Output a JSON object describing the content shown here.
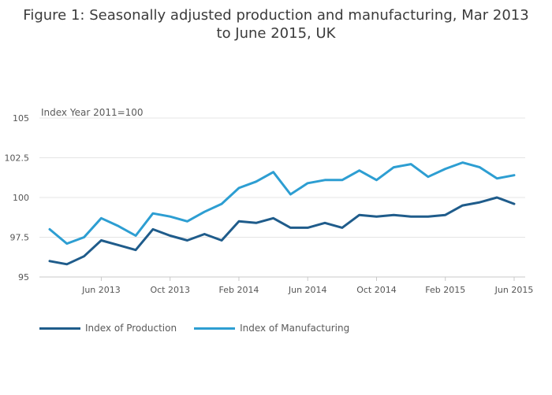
{
  "title": "Figure 1: Seasonally adjusted production and manufacturing, Mar 2013 to June 2015, UK",
  "chart_data": {
    "type": "line",
    "title": "Figure 1: Seasonally adjusted production and manufacturing, Mar 2013 to June 2015, UK",
    "ylabel": "Index Year 2011=100",
    "xlabel": "",
    "ylim": [
      95,
      105
    ],
    "y_ticks": [
      "95",
      "97.5",
      "100",
      "102.5",
      "105"
    ],
    "x_ticks": [
      {
        "index": 3,
        "label": "Jun 2013"
      },
      {
        "index": 7,
        "label": "Oct 2013"
      },
      {
        "index": 11,
        "label": "Feb 2014"
      },
      {
        "index": 15,
        "label": "Jun 2014"
      },
      {
        "index": 19,
        "label": "Oct 2014"
      },
      {
        "index": 23,
        "label": "Feb 2015"
      },
      {
        "index": 27,
        "label": "Jun 2015"
      }
    ],
    "x": [
      "Mar 2013",
      "Apr 2013",
      "May 2013",
      "Jun 2013",
      "Jul 2013",
      "Aug 2013",
      "Sep 2013",
      "Oct 2013",
      "Nov 2013",
      "Dec 2013",
      "Jan 2014",
      "Feb 2014",
      "Mar 2014",
      "Apr 2014",
      "May 2014",
      "Jun 2014",
      "Jul 2014",
      "Aug 2014",
      "Sep 2014",
      "Oct 2014",
      "Nov 2014",
      "Dec 2014",
      "Jan 2015",
      "Feb 2015",
      "Mar 2015",
      "Apr 2015",
      "May 2015",
      "Jun 2015"
    ],
    "series": [
      {
        "name": "Index of Production",
        "color": "#1f5c8b",
        "values": [
          96.0,
          95.8,
          96.3,
          97.3,
          97.0,
          96.7,
          98.0,
          97.6,
          97.3,
          97.7,
          97.3,
          98.5,
          98.4,
          98.7,
          98.1,
          98.1,
          98.4,
          98.1,
          98.9,
          98.8,
          98.9,
          98.8,
          98.8,
          98.9,
          99.5,
          99.7,
          100.0,
          99.6
        ]
      },
      {
        "name": "Index of Manufacturing",
        "color": "#2d9ed2",
        "values": [
          98.0,
          97.1,
          97.5,
          98.7,
          98.2,
          97.6,
          99.0,
          98.8,
          98.5,
          99.1,
          99.6,
          100.6,
          101.0,
          101.6,
          100.2,
          100.9,
          101.1,
          101.1,
          101.7,
          101.1,
          101.9,
          102.1,
          101.3,
          101.8,
          102.2,
          101.9,
          101.2,
          101.4
        ]
      }
    ],
    "legend_position": "bottom-left"
  }
}
